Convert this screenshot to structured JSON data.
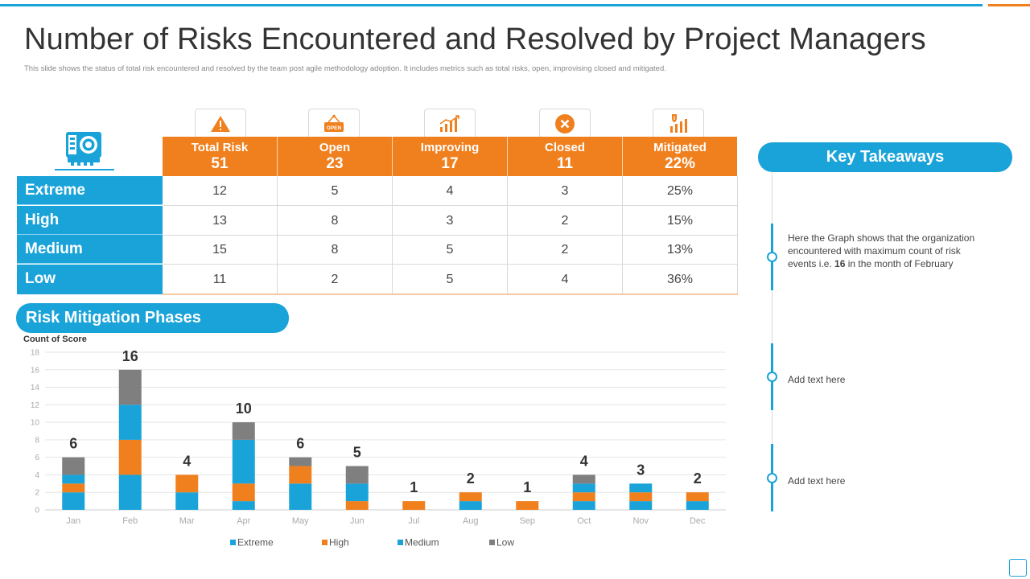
{
  "title": "Number of Risks Encountered and Resolved by Project Managers",
  "subtitle": "This slide shows the status of  total risk encountered and resolved by the team post agile methodology  adoption. It includes metrics such as total risks, open, improvising closed and mitigated.",
  "icons": {
    "corner": "risk-dashboard-icon",
    "total": "warning-icon",
    "open": "open-sign-icon",
    "improving": "growth-chart-icon",
    "closed": "close-circle-icon",
    "mitigated": "shield-chart-icon"
  },
  "colors": {
    "blue": "#1aa3d9",
    "orange": "#f0801e",
    "gray": "#7f7f7f"
  },
  "table": {
    "headers": [
      {
        "label": "Total Risk",
        "value": "51"
      },
      {
        "label": "Open",
        "value": "23"
      },
      {
        "label": "Improving",
        "value": "17"
      },
      {
        "label": "Closed",
        "value": "11"
      },
      {
        "label": "Mitigated",
        "value": "22%"
      }
    ],
    "rows": [
      {
        "label": "Extreme",
        "cells": [
          "12",
          "5",
          "4",
          "3",
          "25%"
        ]
      },
      {
        "label": "High",
        "cells": [
          "13",
          "8",
          "3",
          "2",
          "15%"
        ]
      },
      {
        "label": "Medium",
        "cells": [
          "15",
          "8",
          "5",
          "2",
          "13%"
        ]
      },
      {
        "label": "Low",
        "cells": [
          "11",
          "2",
          "5",
          "4",
          "36%"
        ]
      }
    ]
  },
  "phases_title": "Risk Mitigation Phases",
  "key_takeaways": {
    "title": "Key Takeaways",
    "items": [
      "Here the Graph  shows that the organization  encountered  with maximum count of risk events  i.e. 16 in the month of February",
      "Add text here",
      "Add text here"
    ]
  },
  "chart_data": {
    "type": "bar",
    "stacked": true,
    "ylabel": "Count of Score",
    "ylim": [
      0,
      18
    ],
    "yticks": [
      0,
      2,
      4,
      6,
      8,
      10,
      12,
      14,
      16,
      18
    ],
    "categories": [
      "Jan",
      "Feb",
      "Mar",
      "Apr",
      "May",
      "Jun",
      "Jul",
      "Aug",
      "Sep",
      "Oct",
      "Nov",
      "Dec"
    ],
    "totals": [
      6,
      16,
      4,
      10,
      6,
      5,
      1,
      2,
      1,
      4,
      3,
      2
    ],
    "series": [
      {
        "name": "Extreme",
        "color": "#1aa3d9",
        "values": [
          2,
          4,
          2,
          1,
          3,
          0,
          0,
          1,
          0,
          1,
          1,
          1
        ]
      },
      {
        "name": "High",
        "color": "#f0801e",
        "values": [
          1,
          4,
          2,
          2,
          2,
          1,
          1,
          1,
          1,
          1,
          1,
          1
        ]
      },
      {
        "name": "Medium",
        "color": "#1aa3d9",
        "values": [
          1,
          4,
          0,
          5,
          0,
          2,
          0,
          0,
          0,
          1,
          1,
          0
        ]
      },
      {
        "name": "Low",
        "color": "#7f7f7f",
        "values": [
          2,
          4,
          0,
          2,
          1,
          2,
          0,
          0,
          0,
          1,
          0,
          0
        ]
      }
    ],
    "grid": true,
    "legend": "bottom"
  }
}
